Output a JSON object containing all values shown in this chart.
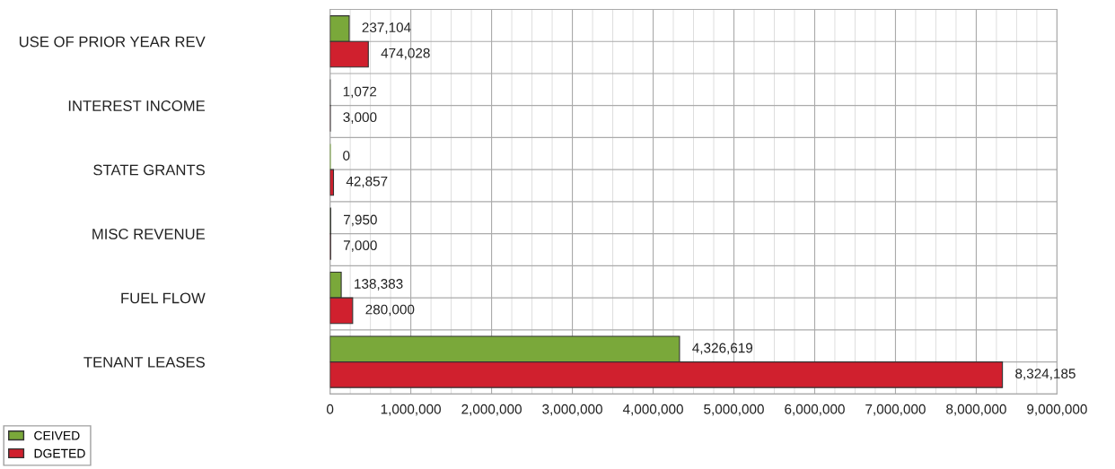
{
  "chart_data": {
    "type": "bar",
    "orientation": "horizontal",
    "categories": [
      "USE OF PRIOR YEAR REV",
      "INTEREST INCOME",
      "STATE GRANTS",
      "MISC REVENUE",
      "FUEL FLOW",
      "TENANT LEASES"
    ],
    "series": [
      {
        "name": "CEIVED",
        "color": "#7aa83a",
        "values": [
          237104,
          1072,
          0,
          7950,
          138383,
          4326619
        ],
        "value_labels": [
          "237,104",
          "1,072",
          "0",
          "7,950",
          "138,383",
          "4,326,619"
        ]
      },
      {
        "name": "DGETED",
        "color": "#d0202e",
        "values": [
          474028,
          3000,
          42857,
          7000,
          280000,
          8324185
        ],
        "value_labels": [
          "474,028",
          "3,000",
          "42,857",
          "7,000",
          "280,000",
          "8,324,185"
        ]
      }
    ],
    "xlim": [
      0,
      9000000
    ],
    "xticks": [
      {
        "value": 0,
        "label": "0"
      },
      {
        "value": 1000000,
        "label": "1,000,000"
      },
      {
        "value": 2000000,
        "label": "2,000,000"
      },
      {
        "value": 3000000,
        "label": "3,000,000"
      },
      {
        "value": 4000000,
        "label": "4,000,000"
      },
      {
        "value": 5000000,
        "label": "5,000,000"
      },
      {
        "value": 6000000,
        "label": "6,000,000"
      },
      {
        "value": 7000000,
        "label": "7,000,000"
      },
      {
        "value": 8000000,
        "label": "8,000,000"
      },
      {
        "value": 9000000,
        "label": "9,000,000"
      }
    ],
    "grid": true,
    "legend": "bottom left"
  }
}
